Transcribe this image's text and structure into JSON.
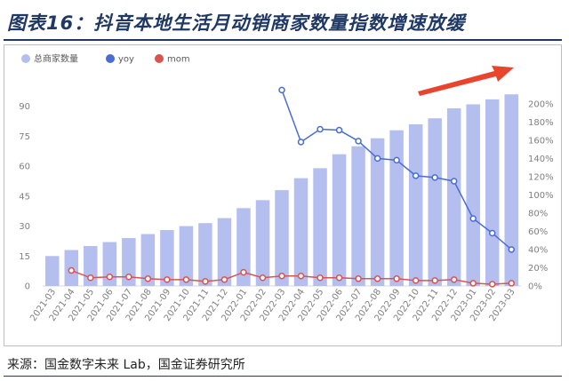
{
  "title": "图表16：抖音本地生活月动销商家数量指数增速放缓",
  "source": "来源：国金数字未来 Lab，国金证券研究所",
  "chart_data": {
    "type": "bar",
    "categories": [
      "2021-03",
      "2021-04",
      "2021-05",
      "2021-06",
      "2021-07",
      "2021-08",
      "2021-09",
      "2021-10",
      "2021-11",
      "2021-12",
      "2022-01",
      "2022-02",
      "2022-03",
      "2022-04",
      "2022-05",
      "2022-06",
      "2022-07",
      "2022-08",
      "2022-09",
      "2022-10",
      "2022-11",
      "2022-12",
      "2023-01",
      "2023-02",
      "2023-03"
    ],
    "series": [
      {
        "name": "总商家数量",
        "kind": "bar",
        "axis": "left",
        "color": "#b4bff0",
        "values": [
          15,
          18,
          20,
          22,
          24,
          26,
          28,
          30,
          31.5,
          34,
          39,
          43,
          48,
          54,
          59,
          66,
          70,
          74,
          78,
          81,
          84,
          89,
          91,
          93.5,
          96
        ]
      },
      {
        "name": "yoy",
        "kind": "line",
        "axis": "right",
        "color": "#4a6cd4",
        "values": [
          null,
          null,
          null,
          null,
          null,
          null,
          null,
          null,
          null,
          null,
          null,
          null,
          215,
          158,
          172,
          171,
          159,
          140,
          138,
          121,
          119,
          115,
          74,
          58,
          40
        ]
      },
      {
        "name": "mom",
        "kind": "line",
        "axis": "right",
        "color": "#d9534f",
        "values": [
          null,
          17,
          9,
          10,
          10,
          8,
          7,
          7,
          5,
          7,
          15,
          9,
          11,
          11,
          9,
          9,
          8,
          8,
          8,
          6,
          6,
          7,
          3,
          2,
          3
        ]
      }
    ],
    "left_axis": {
      "min": 0,
      "max": 105,
      "ticks": [
        0,
        15,
        30,
        45,
        60,
        75,
        90
      ]
    },
    "right_axis": {
      "min": 0,
      "max": 230,
      "ticks": [
        0,
        20,
        40,
        60,
        80,
        100,
        120,
        140,
        160,
        180,
        200
      ],
      "unit": "%"
    },
    "legend_position": "top-left",
    "grid": false,
    "annotation": "red upward arrow"
  }
}
